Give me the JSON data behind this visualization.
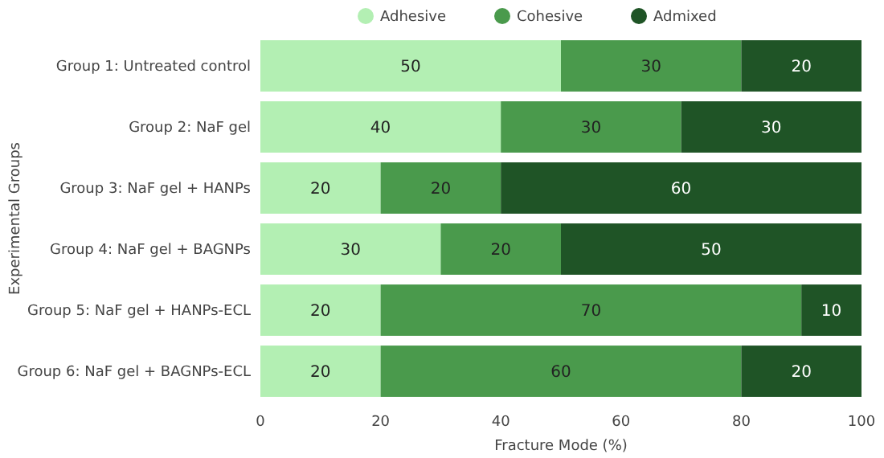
{
  "chart_data": {
    "type": "bar",
    "orientation": "horizontal",
    "stacked": true,
    "data_labels": true,
    "legend": "top",
    "xlabel": "Fracture Mode (%)",
    "ylabel": "Experimental Groups",
    "categories": [
      "Group 1: Untreated control",
      "Group 2: NaF gel",
      "Group 3: NaF gel + HANPs",
      "Group 4: NaF gel + BAGNPs",
      "Group 5: NaF gel + HANPs-ECL",
      "Group 6: NaF gel + BAGNPs-ECL"
    ],
    "xlim": [
      0,
      100
    ],
    "xticks": [
      0,
      20,
      40,
      60,
      80,
      100
    ],
    "series": [
      {
        "name": "Adhesive",
        "color": "#b3efb3",
        "values": [
          50,
          40,
          20,
          30,
          20,
          20
        ]
      },
      {
        "name": "Cohesive",
        "color": "#4a9a4c",
        "values": [
          30,
          30,
          20,
          20,
          70,
          60
        ]
      },
      {
        "name": "Admixed",
        "color": "#1f5426",
        "values": [
          20,
          30,
          60,
          50,
          10,
          20
        ]
      }
    ]
  }
}
